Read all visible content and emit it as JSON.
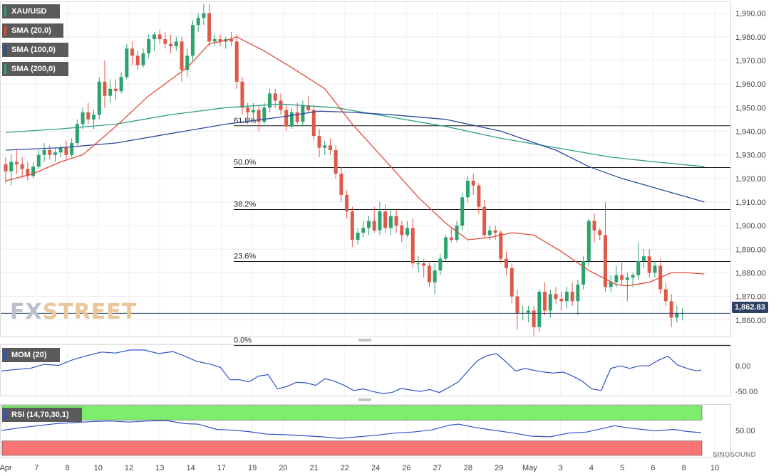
{
  "legend": {
    "symbol": "XAU/USD",
    "sma20": "SMA (20,0)",
    "sma100": "SMA (100,0)",
    "sma200": "SMA (200,0)",
    "mom": "MOM (20)",
    "rsi": "RSI (14,70,30,1)"
  },
  "colors": {
    "bull": "#2aa36e",
    "bear": "#de5947",
    "sma20": "#e04a3a",
    "sma100": "#2b4aa0",
    "sma200": "#2f9e86",
    "mom_line": "#2e52c8",
    "rsi_line": "#2e52c8",
    "rsi_over": "#7dee6c",
    "rsi_under": "#f97474",
    "price_line": "#2e4064"
  },
  "logo": {
    "fx": "FX",
    "street": "STREET"
  },
  "watermark": "SINOSOUND",
  "current_price": "1,862.83",
  "chart_data": {
    "type": "candlestick",
    "title": "XAU/USD",
    "x_labels": [
      "Apr",
      "7",
      "8",
      "10",
      "12",
      "13",
      "14",
      "17",
      "19",
      "20",
      "21",
      "22",
      "24",
      "26",
      "27",
      "28",
      "29",
      "May",
      "3",
      "4",
      "5",
      "6",
      "8",
      "10"
    ],
    "ylim": [
      1853,
      1995
    ],
    "y_ticks": [
      "1,990.00",
      "1,980.00",
      "1,970.00",
      "1,960.00",
      "1,950.00",
      "1,940.00",
      "1,930.00",
      "1,920.00",
      "1,910.00",
      "1,900.00",
      "1,890.00",
      "1,880.00",
      "1,870.00",
      "1,860.00"
    ],
    "fibonacci": [
      {
        "label": "61.8%",
        "value": 1942.3
      },
      {
        "label": "50.0%",
        "value": 1924.6
      },
      {
        "label": "38.2%",
        "value": 1906.8
      },
      {
        "label": "23.6%",
        "value": 1884.8
      },
      {
        "label": "0.0%",
        "value": 1849.2
      }
    ],
    "ohlc": [
      [
        1926,
        1929,
        1918,
        1923
      ],
      [
        1923,
        1930,
        1917,
        1927
      ],
      [
        1927,
        1932,
        1922,
        1926
      ],
      [
        1926,
        1929,
        1920,
        1924
      ],
      [
        1924,
        1927,
        1919,
        1921
      ],
      [
        1921,
        1927,
        1920,
        1925
      ],
      [
        1925,
        1932,
        1924,
        1930
      ],
      [
        1930,
        1935,
        1927,
        1932
      ],
      [
        1932,
        1934,
        1928,
        1930
      ],
      [
        1930,
        1933,
        1927,
        1931
      ],
      [
        1931,
        1934,
        1929,
        1933
      ],
      [
        1933,
        1936,
        1928,
        1930
      ],
      [
        1930,
        1937,
        1929,
        1935
      ],
      [
        1935,
        1945,
        1934,
        1943
      ],
      [
        1943,
        1950,
        1941,
        1948
      ],
      [
        1948,
        1952,
        1943,
        1945
      ],
      [
        1945,
        1949,
        1941,
        1947
      ],
      [
        1947,
        1963,
        1945,
        1961
      ],
      [
        1961,
        1970,
        1950,
        1955
      ],
      [
        1955,
        1962,
        1952,
        1958
      ],
      [
        1958,
        1962,
        1953,
        1957
      ],
      [
        1957,
        1965,
        1956,
        1963
      ],
      [
        1963,
        1977,
        1962,
        1975
      ],
      [
        1975,
        1978,
        1968,
        1972
      ],
      [
        1972,
        1974,
        1966,
        1968
      ],
      [
        1968,
        1975,
        1967,
        1973
      ],
      [
        1973,
        1981,
        1971,
        1979
      ],
      [
        1979,
        1982,
        1974,
        1981
      ],
      [
        1981,
        1983,
        1977,
        1979
      ],
      [
        1979,
        1982,
        1975,
        1977
      ],
      [
        1977,
        1981,
        1973,
        1976
      ],
      [
        1976,
        1980,
        1974,
        1978
      ],
      [
        1978,
        1980,
        1961,
        1966
      ],
      [
        1966,
        1975,
        1963,
        1972
      ],
      [
        1972,
        1987,
        1970,
        1985
      ],
      [
        1985,
        1990,
        1982,
        1988
      ],
      [
        1988,
        1994,
        1985,
        1990
      ],
      [
        1990,
        1994,
        1976,
        1978
      ],
      [
        1978,
        1981,
        1976,
        1979
      ],
      [
        1979,
        1981,
        1976,
        1978
      ],
      [
        1978,
        1980,
        1975,
        1979
      ],
      [
        1979,
        1982,
        1976,
        1978
      ],
      [
        1978,
        1981,
        1958,
        1961
      ],
      [
        1961,
        1963,
        1947,
        1950
      ],
      [
        1950,
        1952,
        1943,
        1948
      ],
      [
        1948,
        1952,
        1944,
        1949
      ],
      [
        1949,
        1951,
        1940,
        1944
      ],
      [
        1944,
        1952,
        1943,
        1950
      ],
      [
        1950,
        1958,
        1948,
        1956
      ],
      [
        1956,
        1958,
        1950,
        1953
      ],
      [
        1953,
        1956,
        1947,
        1949
      ],
      [
        1949,
        1951,
        1940,
        1942
      ],
      [
        1942,
        1950,
        1941,
        1948
      ],
      [
        1948,
        1952,
        1943,
        1944
      ],
      [
        1944,
        1953,
        1942,
        1951
      ],
      [
        1951,
        1955,
        1948,
        1949
      ],
      [
        1949,
        1951,
        1936,
        1938
      ],
      [
        1938,
        1941,
        1929,
        1933
      ],
      [
        1933,
        1936,
        1930,
        1934
      ],
      [
        1934,
        1937,
        1930,
        1932
      ],
      [
        1932,
        1934,
        1920,
        1922
      ],
      [
        1922,
        1925,
        1910,
        1913
      ],
      [
        1913,
        1915,
        1903,
        1906
      ],
      [
        1906,
        1908,
        1891,
        1894
      ],
      [
        1894,
        1899,
        1892,
        1897
      ],
      [
        1897,
        1902,
        1895,
        1899
      ],
      [
        1899,
        1904,
        1896,
        1902
      ],
      [
        1902,
        1908,
        1897,
        1898
      ],
      [
        1898,
        1910,
        1896,
        1906
      ],
      [
        1906,
        1909,
        1897,
        1899
      ],
      [
        1899,
        1907,
        1896,
        1904
      ],
      [
        1904,
        1907,
        1897,
        1900
      ],
      [
        1900,
        1902,
        1893,
        1896
      ],
      [
        1896,
        1902,
        1895,
        1899
      ],
      [
        1899,
        1903,
        1882,
        1884
      ],
      [
        1884,
        1887,
        1880,
        1884
      ],
      [
        1884,
        1886,
        1878,
        1883
      ],
      [
        1883,
        1885,
        1874,
        1876
      ],
      [
        1876,
        1884,
        1871,
        1881
      ],
      [
        1881,
        1888,
        1879,
        1886
      ],
      [
        1886,
        1896,
        1885,
        1895
      ],
      [
        1895,
        1899,
        1893,
        1894
      ],
      [
        1894,
        1902,
        1893,
        1900
      ],
      [
        1900,
        1914,
        1898,
        1912
      ],
      [
        1912,
        1921,
        1910,
        1919
      ],
      [
        1919,
        1922,
        1913,
        1917
      ],
      [
        1917,
        1918,
        1905,
        1908
      ],
      [
        1908,
        1911,
        1895,
        1896
      ],
      [
        1896,
        1900,
        1894,
        1898
      ],
      [
        1898,
        1900,
        1894,
        1897
      ],
      [
        1897,
        1898,
        1884,
        1886
      ],
      [
        1886,
        1889,
        1879,
        1882
      ],
      [
        1882,
        1884,
        1867,
        1870
      ],
      [
        1870,
        1873,
        1856,
        1863
      ],
      [
        1863,
        1866,
        1860,
        1863
      ],
      [
        1863,
        1866,
        1859,
        1864
      ],
      [
        1864,
        1866,
        1853,
        1857
      ],
      [
        1857,
        1873,
        1855,
        1872
      ],
      [
        1872,
        1876,
        1862,
        1864
      ],
      [
        1864,
        1873,
        1861,
        1871
      ],
      [
        1871,
        1874,
        1867,
        1869
      ],
      [
        1869,
        1872,
        1864,
        1868
      ],
      [
        1868,
        1874,
        1865,
        1872
      ],
      [
        1872,
        1876,
        1866,
        1868
      ],
      [
        1868,
        1877,
        1862,
        1875
      ],
      [
        1875,
        1887,
        1873,
        1885
      ],
      [
        1885,
        1903,
        1883,
        1902
      ],
      [
        1902,
        1905,
        1893,
        1898
      ],
      [
        1898,
        1899,
        1894,
        1896
      ],
      [
        1896,
        1910,
        1872,
        1874
      ],
      [
        1874,
        1879,
        1872,
        1876
      ],
      [
        1876,
        1883,
        1874,
        1879
      ],
      [
        1879,
        1885,
        1875,
        1877
      ],
      [
        1877,
        1880,
        1868,
        1878
      ],
      [
        1878,
        1880,
        1874,
        1879
      ],
      [
        1879,
        1893,
        1877,
        1885
      ],
      [
        1885,
        1890,
        1882,
        1887
      ],
      [
        1887,
        1890,
        1878,
        1880
      ],
      [
        1880,
        1885,
        1878,
        1883
      ],
      [
        1883,
        1886,
        1871,
        1873
      ],
      [
        1873,
        1876,
        1866,
        1868
      ],
      [
        1868,
        1871,
        1857,
        1861
      ],
      [
        1861,
        1866,
        1859,
        1863
      ],
      [
        1863,
        1865,
        1860,
        1863
      ]
    ],
    "sma20": [
      [
        0,
        1919
      ],
      [
        5,
        1922
      ],
      [
        10,
        1927
      ],
      [
        14,
        1930
      ],
      [
        20,
        1942
      ],
      [
        26,
        1955
      ],
      [
        33,
        1967
      ],
      [
        37,
        1977
      ],
      [
        40,
        1978.5
      ],
      [
        42,
        1980
      ],
      [
        47,
        1974
      ],
      [
        52,
        1967
      ],
      [
        58,
        1958
      ],
      [
        63,
        1943
      ],
      [
        70,
        1925
      ],
      [
        75,
        1912
      ],
      [
        80,
        1901
      ],
      [
        84,
        1894
      ],
      [
        88,
        1895
      ],
      [
        92,
        1897
      ],
      [
        96,
        1896
      ],
      [
        101,
        1889
      ],
      [
        106,
        1881
      ],
      [
        111,
        1875
      ],
      [
        113,
        1874.5
      ],
      [
        117,
        1876
      ],
      [
        121,
        1880
      ],
      [
        124,
        1880
      ],
      [
        127,
        1879.5
      ]
    ],
    "sma100": [
      [
        0,
        1932
      ],
      [
        10,
        1933
      ],
      [
        20,
        1935
      ],
      [
        30,
        1939
      ],
      [
        40,
        1943
      ],
      [
        50,
        1946
      ],
      [
        57,
        1948.5
      ],
      [
        63,
        1948
      ],
      [
        70,
        1947
      ],
      [
        80,
        1945
      ],
      [
        90,
        1940
      ],
      [
        100,
        1932
      ],
      [
        106,
        1925
      ],
      [
        112,
        1920
      ],
      [
        118,
        1916
      ],
      [
        127,
        1910
      ]
    ],
    "sma200": [
      [
        0,
        1939.5
      ],
      [
        10,
        1941
      ],
      [
        20,
        1943
      ],
      [
        30,
        1947
      ],
      [
        40,
        1950
      ],
      [
        50,
        1951.5
      ],
      [
        60,
        1950
      ],
      [
        70,
        1946
      ],
      [
        80,
        1942
      ],
      [
        90,
        1937
      ],
      [
        100,
        1933
      ],
      [
        110,
        1929
      ],
      [
        118,
        1927
      ],
      [
        127,
        1925
      ]
    ],
    "mom": {
      "ylim": [
        -58,
        42
      ],
      "ticks": [
        "0.00",
        "-50.00"
      ],
      "values": [
        [
          0,
          -10
        ],
        [
          3,
          -7
        ],
        [
          6,
          -5
        ],
        [
          9,
          3
        ],
        [
          12,
          1
        ],
        [
          15,
          12
        ],
        [
          18,
          20
        ],
        [
          21,
          27
        ],
        [
          24,
          25
        ],
        [
          27,
          31
        ],
        [
          30,
          31
        ],
        [
          33,
          24
        ],
        [
          36,
          28
        ],
        [
          38,
          21
        ],
        [
          41,
          9
        ],
        [
          44,
          3
        ],
        [
          46,
          -3
        ],
        [
          48,
          -27
        ],
        [
          50,
          -27
        ],
        [
          52,
          -31
        ],
        [
          54,
          -20
        ],
        [
          56,
          -17
        ],
        [
          58,
          -45
        ],
        [
          60,
          -40
        ],
        [
          62,
          -32
        ],
        [
          64,
          -33
        ],
        [
          66,
          -38
        ],
        [
          68,
          -25
        ],
        [
          70,
          -30
        ],
        [
          72,
          -38
        ],
        [
          74,
          -48
        ],
        [
          76,
          -45
        ],
        [
          78,
          -50
        ],
        [
          80,
          -54
        ],
        [
          82,
          -52
        ],
        [
          84,
          -44
        ],
        [
          86,
          -47
        ],
        [
          88,
          -50
        ],
        [
          90,
          -46
        ],
        [
          92,
          -52
        ],
        [
          94,
          -42
        ],
        [
          96,
          -31
        ],
        [
          98,
          -10
        ],
        [
          100,
          10
        ],
        [
          102,
          20
        ],
        [
          104,
          24
        ],
        [
          106,
          8
        ],
        [
          108,
          -10
        ],
        [
          110,
          -5
        ],
        [
          112,
          -9
        ],
        [
          114,
          -12
        ],
        [
          116,
          -14
        ],
        [
          118,
          -12
        ],
        [
          120,
          -20
        ],
        [
          122,
          -30
        ],
        [
          124,
          -45
        ],
        [
          126,
          -48
        ],
        [
          128,
          -5
        ],
        [
          130,
          0
        ],
        [
          132,
          -5
        ],
        [
          134,
          0
        ],
        [
          136,
          0
        ],
        [
          138,
          11
        ],
        [
          140,
          19
        ],
        [
          142,
          2
        ],
        [
          144,
          -5
        ],
        [
          146,
          -10
        ],
        [
          147,
          -8
        ]
      ]
    },
    "rsi": {
      "ylim": [
        0,
        100
      ],
      "ticks": [
        "50.00"
      ],
      "overbought": 70,
      "oversold": 30,
      "values": [
        [
          0,
          50
        ],
        [
          4,
          55
        ],
        [
          8,
          59
        ],
        [
          12,
          63
        ],
        [
          16,
          65
        ],
        [
          20,
          67
        ],
        [
          24,
          68
        ],
        [
          28,
          66
        ],
        [
          32,
          68
        ],
        [
          36,
          69
        ],
        [
          40,
          63
        ],
        [
          43,
          62
        ],
        [
          47,
          52
        ],
        [
          50,
          51
        ],
        [
          54,
          48
        ],
        [
          58,
          43
        ],
        [
          62,
          42
        ],
        [
          66,
          40
        ],
        [
          70,
          38
        ],
        [
          74,
          35
        ],
        [
          78,
          38
        ],
        [
          82,
          41
        ],
        [
          86,
          45
        ],
        [
          90,
          47
        ],
        [
          94,
          51
        ],
        [
          98,
          60
        ],
        [
          100,
          62
        ],
        [
          104,
          55
        ],
        [
          108,
          50
        ],
        [
          112,
          45
        ],
        [
          116,
          39
        ],
        [
          120,
          38
        ],
        [
          124,
          45
        ],
        [
          128,
          47
        ],
        [
          131,
          53
        ],
        [
          134,
          59
        ],
        [
          137,
          55
        ],
        [
          140,
          52
        ],
        [
          143,
          49
        ],
        [
          147,
          52
        ],
        [
          150,
          48
        ],
        [
          153,
          46
        ]
      ]
    }
  }
}
